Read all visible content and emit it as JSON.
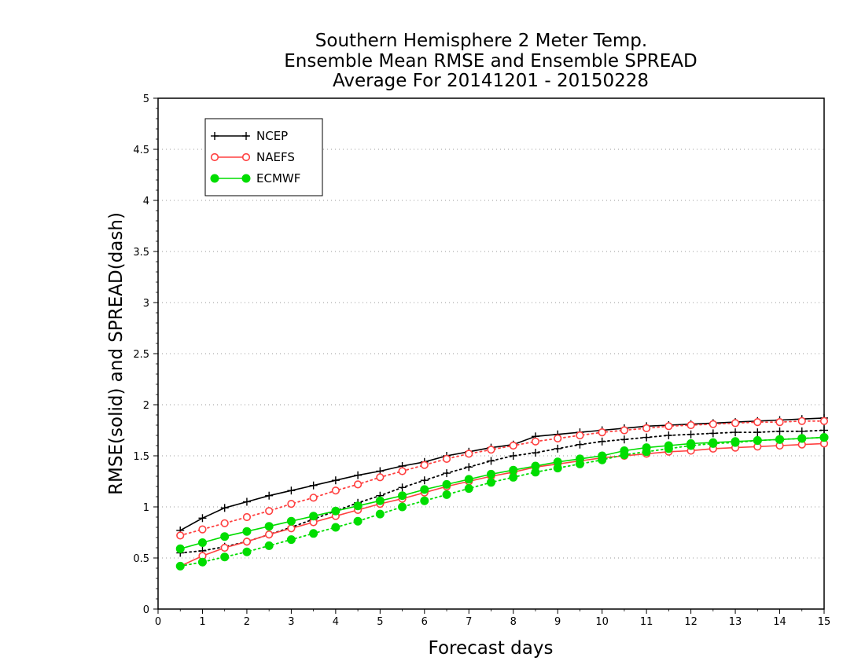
{
  "chart_data": {
    "type": "line",
    "title": [
      "Southern Hemisphere 2 Meter Temp.",
      "Ensemble Mean RMSE and Ensemble SPREAD",
      "Average For 20141201 - 20150228"
    ],
    "xlabel": "Forecast days",
    "ylabel": "RMSE(solid) and SPREAD(dash)",
    "xlim": [
      0,
      15
    ],
    "ylim": [
      0,
      5
    ],
    "xticks": [
      "0",
      "1",
      "2",
      "3",
      "4",
      "5",
      "6",
      "7",
      "8",
      "9",
      "10",
      "11",
      "12",
      "13",
      "14",
      "15"
    ],
    "yticks": [
      "0",
      "0.5",
      "1",
      "1.5",
      "2",
      "2.5",
      "3",
      "3.5",
      "4",
      "4.5",
      "5"
    ],
    "grid": "horizontal dotted",
    "legend_position": "top-left",
    "x": [
      0.5,
      1,
      1.5,
      2,
      2.5,
      3,
      3.5,
      4,
      4.5,
      5,
      5.5,
      6,
      6.5,
      7,
      7.5,
      8,
      8.5,
      9,
      9.5,
      10,
      10.5,
      11,
      11.5,
      12,
      12.5,
      13,
      13.5,
      14,
      14.5,
      15
    ],
    "series": [
      {
        "name": "NCEP",
        "metric": "RMSE",
        "style": "solid",
        "marker": "plus",
        "color": "#000000",
        "values": [
          0.77,
          0.89,
          0.99,
          1.05,
          1.11,
          1.16,
          1.21,
          1.26,
          1.31,
          1.35,
          1.4,
          1.44,
          1.5,
          1.54,
          1.58,
          1.61,
          1.69,
          1.71,
          1.73,
          1.75,
          1.77,
          1.79,
          1.8,
          1.81,
          1.82,
          1.83,
          1.84,
          1.85,
          1.86,
          1.87
        ]
      },
      {
        "name": "NCEP",
        "metric": "SPREAD",
        "style": "dotted",
        "marker": "plus",
        "color": "#000000",
        "values": [
          0.55,
          0.57,
          0.61,
          0.66,
          0.73,
          0.8,
          0.88,
          0.96,
          1.04,
          1.11,
          1.19,
          1.26,
          1.33,
          1.39,
          1.45,
          1.5,
          1.53,
          1.57,
          1.61,
          1.64,
          1.66,
          1.68,
          1.7,
          1.71,
          1.72,
          1.73,
          1.73,
          1.74,
          1.74,
          1.75
        ]
      },
      {
        "name": "NAEFS",
        "metric": "RMSE",
        "style": "solid",
        "marker": "open-circle",
        "color": "#ff4040",
        "values": [
          0.42,
          0.52,
          0.6,
          0.66,
          0.73,
          0.79,
          0.85,
          0.91,
          0.97,
          1.03,
          1.08,
          1.14,
          1.2,
          1.25,
          1.3,
          1.34,
          1.39,
          1.42,
          1.45,
          1.48,
          1.5,
          1.52,
          1.54,
          1.55,
          1.57,
          1.58,
          1.59,
          1.6,
          1.61,
          1.62
        ]
      },
      {
        "name": "NAEFS",
        "metric": "SPREAD",
        "style": "dotted",
        "marker": "open-circle",
        "color": "#ff4040",
        "values": [
          0.72,
          0.78,
          0.84,
          0.9,
          0.96,
          1.03,
          1.09,
          1.16,
          1.22,
          1.29,
          1.35,
          1.41,
          1.47,
          1.52,
          1.56,
          1.6,
          1.64,
          1.67,
          1.7,
          1.73,
          1.75,
          1.77,
          1.79,
          1.8,
          1.81,
          1.82,
          1.83,
          1.83,
          1.84,
          1.84
        ]
      },
      {
        "name": "ECMWF",
        "metric": "RMSE",
        "style": "solid",
        "marker": "filled-circle",
        "color": "#00dd00",
        "values": [
          0.59,
          0.65,
          0.71,
          0.76,
          0.81,
          0.86,
          0.91,
          0.96,
          1.01,
          1.06,
          1.11,
          1.17,
          1.22,
          1.27,
          1.32,
          1.36,
          1.4,
          1.44,
          1.47,
          1.5,
          1.55,
          1.58,
          1.6,
          1.62,
          1.63,
          1.64,
          1.65,
          1.66,
          1.67,
          1.68
        ]
      },
      {
        "name": "ECMWF",
        "metric": "SPREAD",
        "style": "dotted",
        "marker": "filled-circle",
        "color": "#00dd00",
        "values": [
          0.42,
          0.46,
          0.51,
          0.56,
          0.62,
          0.68,
          0.74,
          0.8,
          0.86,
          0.93,
          1.0,
          1.06,
          1.12,
          1.18,
          1.24,
          1.29,
          1.34,
          1.38,
          1.42,
          1.46,
          1.51,
          1.54,
          1.57,
          1.6,
          1.62,
          1.63,
          1.65,
          1.66,
          1.67,
          1.68
        ]
      }
    ],
    "legend": [
      {
        "name": "NCEP",
        "marker": "plus",
        "color": "#000000"
      },
      {
        "name": "NAEFS",
        "marker": "open-circle",
        "color": "#ff4040"
      },
      {
        "name": "ECMWF",
        "marker": "filled-circle",
        "color": "#00dd00"
      }
    ]
  }
}
